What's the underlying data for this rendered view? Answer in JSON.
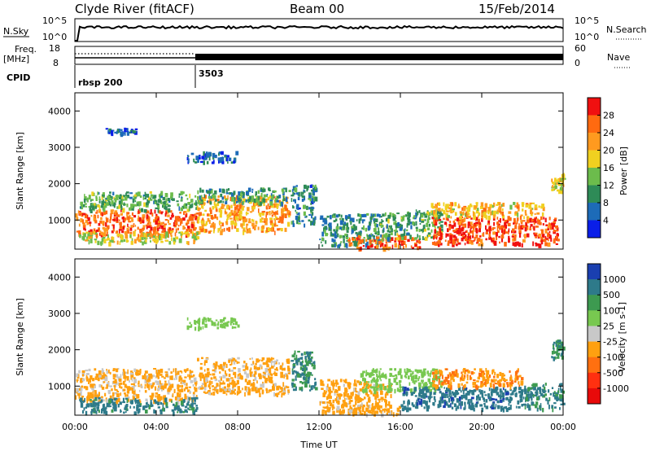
{
  "header": {
    "station": "Clyde River (fitACF)",
    "beam": "Beam 00",
    "date": "15/Feb/2014"
  },
  "sky_panel": {
    "left_label": "N.Sky",
    "left_top_tick": "10^5",
    "left_bottom_tick": "10^0",
    "right_top_tick": "10^5",
    "right_bottom_tick": "10^0",
    "right_label": "N.Search"
  },
  "freq_panel": {
    "left_label_1": "Freq.",
    "left_label_2": "[MHz]",
    "left_top_tick": "18",
    "left_bottom_tick": "8",
    "right_top_tick": "60",
    "right_bottom_tick": "0",
    "right_label": "Nave"
  },
  "cpid": {
    "label": "CPID",
    "segments": [
      {
        "start_hour": 0,
        "name": "rbsp 200"
      },
      {
        "start_hour": 6,
        "name": "3503"
      }
    ]
  },
  "chart_data": [
    {
      "type": "heatmap",
      "panel": "power",
      "title": "",
      "xlabel": "Time UT",
      "ylabel": "Slant Range [km]",
      "xlim": [
        0,
        24
      ],
      "ylim": [
        200,
        4500
      ],
      "x_ticks": [
        0,
        4,
        8,
        12,
        16,
        20,
        24
      ],
      "x_tick_labels": [
        "00:00",
        "04:00",
        "08:00",
        "12:00",
        "16:00",
        "20:00",
        "00:00"
      ],
      "y_ticks": [
        1000,
        2000,
        3000,
        4000
      ],
      "y_tick_labels": [
        "1000",
        "2000",
        "3000",
        "4000"
      ],
      "colorbar": {
        "label": "Power [dB]",
        "ticks": [
          "4",
          "8",
          "12",
          "16",
          "20",
          "24",
          "28"
        ],
        "colors": [
          "#0a1ee8",
          "#1d6bb8",
          "#2e8b57",
          "#6cbc4c",
          "#f0d020",
          "#ff9a1f",
          "#ff6a10",
          "#f01010"
        ]
      },
      "regions": [
        {
          "t0": 0.0,
          "t1": 6.0,
          "r0": 600,
          "r1": 1300,
          "value": 26
        },
        {
          "t0": 0.2,
          "t1": 6.0,
          "r0": 1300,
          "r1": 1800,
          "value": 12
        },
        {
          "t0": 0.2,
          "t1": 6.0,
          "r0": 400,
          "r1": 700,
          "value": 18
        },
        {
          "t0": 6.0,
          "t1": 10.5,
          "r0": 700,
          "r1": 1700,
          "value": 22
        },
        {
          "t0": 6.0,
          "t1": 10.5,
          "r0": 1500,
          "r1": 1900,
          "value": 10
        },
        {
          "t0": 10.6,
          "t1": 11.8,
          "r0": 900,
          "r1": 2000,
          "value": 8
        },
        {
          "t0": 12.0,
          "t1": 15.0,
          "r0": 300,
          "r1": 1200,
          "value": 10
        },
        {
          "t0": 13.4,
          "t1": 17.0,
          "r0": 250,
          "r1": 600,
          "value": 26
        },
        {
          "t0": 15.0,
          "t1": 18.0,
          "r0": 500,
          "r1": 1300,
          "value": 12
        },
        {
          "t0": 17.5,
          "t1": 23.7,
          "r0": 350,
          "r1": 1100,
          "value": 28
        },
        {
          "t0": 17.5,
          "t1": 23.0,
          "r0": 1100,
          "r1": 1500,
          "value": 20
        },
        {
          "t0": 23.4,
          "t1": 24.0,
          "r0": 1800,
          "r1": 2300,
          "value": 18
        },
        {
          "t0": 1.5,
          "t1": 3.0,
          "r0": 3400,
          "r1": 3550,
          "value": 6
        },
        {
          "t0": 5.5,
          "t1": 8.0,
          "r0": 2600,
          "r1": 2900,
          "value": 6
        }
      ]
    },
    {
      "type": "heatmap",
      "panel": "velocity",
      "title": "",
      "xlabel": "Time UT",
      "ylabel": "Slant Range [km]",
      "xlim": [
        0,
        24
      ],
      "ylim": [
        200,
        4500
      ],
      "x_ticks": [
        0,
        4,
        8,
        12,
        16,
        20,
        24
      ],
      "x_tick_labels": [
        "00:00",
        "04:00",
        "08:00",
        "12:00",
        "16:00",
        "20:00",
        "00:00"
      ],
      "y_ticks": [
        1000,
        2000,
        3000,
        4000
      ],
      "y_tick_labels": [
        "1000",
        "2000",
        "3000",
        "4000"
      ],
      "colorbar": {
        "label": "Velocity [m s-1]",
        "ticks": [
          "1000",
          "500",
          "100",
          "25",
          "-25",
          "-100",
          "-500",
          "-1000"
        ],
        "colors": [
          "#1a3fb0",
          "#2e7a8a",
          "#3d9a50",
          "#78c850",
          "#c8c8c8",
          "#ffa010",
          "#ff7010",
          "#ff3010",
          "#e80a0a"
        ]
      },
      "regions": [
        {
          "t0": 0.0,
          "t1": 6.0,
          "r0": 600,
          "r1": 1500,
          "value": -120
        },
        {
          "t0": 0.2,
          "t1": 6.0,
          "r0": 300,
          "r1": 700,
          "value": 150
        },
        {
          "t0": 6.0,
          "t1": 10.5,
          "r0": 800,
          "r1": 1800,
          "value": -150
        },
        {
          "t0": 10.6,
          "t1": 11.8,
          "r0": 900,
          "r1": 2000,
          "value": 100
        },
        {
          "t0": 12.0,
          "t1": 15.5,
          "r0": 300,
          "r1": 1200,
          "value": -200
        },
        {
          "t0": 13.4,
          "t1": 16.0,
          "r0": 250,
          "r1": 500,
          "value": -150
        },
        {
          "t0": 14.0,
          "t1": 18.0,
          "r0": 900,
          "r1": 1500,
          "value": 0
        },
        {
          "t0": 16.0,
          "t1": 22.0,
          "r0": 400,
          "r1": 1000,
          "value": 300
        },
        {
          "t0": 22.0,
          "t1": 24.0,
          "r0": 400,
          "r1": 1100,
          "value": 120
        },
        {
          "t0": 17.5,
          "t1": 22.0,
          "r0": 1000,
          "r1": 1500,
          "value": -400
        },
        {
          "t0": 23.4,
          "t1": 24.0,
          "r0": 1800,
          "r1": 2300,
          "value": 80
        },
        {
          "t0": 5.5,
          "t1": 8.0,
          "r0": 2600,
          "r1": 2900,
          "value": 0
        }
      ]
    }
  ]
}
